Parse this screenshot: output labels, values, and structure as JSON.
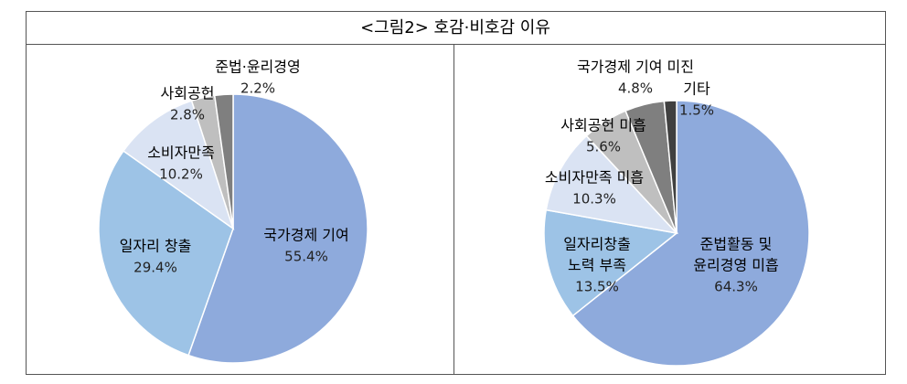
{
  "title": "<그림2> 호감·비호감 이유",
  "chart_data": [
    {
      "type": "pie",
      "categories": [
        [
          "국가경제 기여"
        ],
        [
          "일자리 창출"
        ],
        [
          "소비자만족"
        ],
        [
          "사회공헌"
        ],
        [
          "준법·윤리경영"
        ]
      ],
      "values": [
        55.4,
        29.4,
        10.2,
        2.8,
        2.2
      ],
      "value_labels": [
        "55.4%",
        "29.4%",
        "10.2%",
        "2.8%",
        "2.2%"
      ],
      "colors": [
        "#8eaadc",
        "#9dc3e6",
        "#dae3f3",
        "#bfbfbf",
        "#7f7f7f"
      ]
    },
    {
      "type": "pie",
      "categories": [
        [
          "준법활동 및",
          "윤리경영 미흡"
        ],
        [
          "일자리창출",
          "노력 부족"
        ],
        [
          "소비자만족 미흡"
        ],
        [
          "사회공헌 미흡"
        ],
        [
          "국가경제 기여 미진"
        ],
        [
          "기타"
        ]
      ],
      "values": [
        64.3,
        13.5,
        10.3,
        5.6,
        4.8,
        1.5
      ],
      "value_labels": [
        "64.3%",
        "13.5%",
        "10.3%",
        "5.6%",
        "4.8%",
        "1.5%"
      ],
      "colors": [
        "#8eaadc",
        "#9dc3e6",
        "#dae3f3",
        "#bfbfbf",
        "#7f7f7f",
        "#404040"
      ]
    }
  ]
}
